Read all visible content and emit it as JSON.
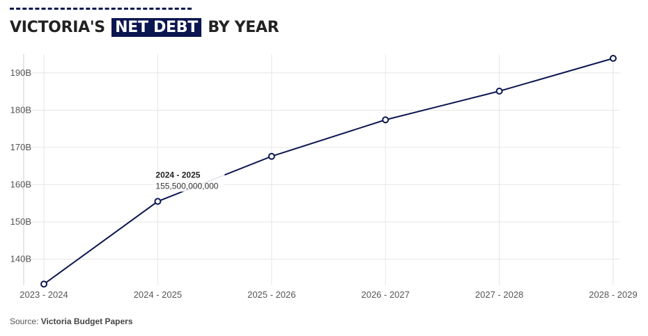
{
  "header": {
    "title_pre": "VICTORIA'S",
    "title_highlight": "NET DEBT",
    "title_post": "BY YEAR"
  },
  "source": {
    "label": "Source:",
    "name": "Victoria Budget Papers"
  },
  "tooltip": {
    "category": "2024 - 2025",
    "value_text": "155,500,000,000"
  },
  "colors": {
    "line": "#0b1650",
    "grid": "#e6e6e6",
    "axis_text": "#555555"
  },
  "chart_data": {
    "type": "line",
    "title": "VICTORIA'S NET DEBT BY YEAR",
    "xlabel": "",
    "ylabel": "",
    "categories": [
      "2023 - 2024",
      "2024 - 2025",
      "2025 - 2026",
      "2026 - 2027",
      "2027 - 2028",
      "2028 - 2029"
    ],
    "series": [
      {
        "values": [
          133300000000,
          155500000000,
          167600000000,
          177400000000,
          185100000000,
          193900000000
        ]
      }
    ],
    "yticks": [
      140000000000,
      150000000000,
      160000000000,
      170000000000,
      180000000000,
      190000000000
    ],
    "ytick_labels": [
      "140B",
      "150B",
      "160B",
      "170B",
      "180B",
      "190B"
    ],
    "ylim": [
      133000000000,
      195000000000
    ],
    "grid": true,
    "legend": "none"
  }
}
